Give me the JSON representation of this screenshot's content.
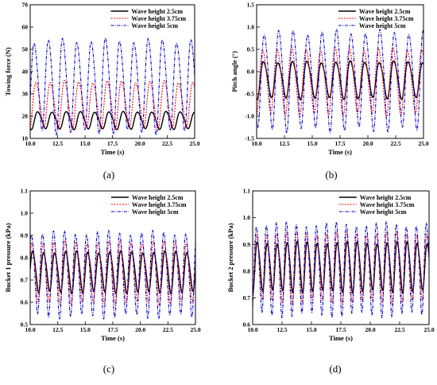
{
  "colors": {
    "s1": "#000000",
    "s2": "#ff0000",
    "s3": "#0000cc"
  },
  "chart_data": [
    {
      "type": "line",
      "panel": "(a)",
      "xlabel": "Time (s)",
      "ylabel": "Towing force (N)",
      "xlim": [
        10.0,
        25.0
      ],
      "ylim": [
        10,
        70
      ],
      "xticks": [
        "10.0",
        "12.5",
        "15.0",
        "17.5",
        "20.0",
        "22.5",
        "25.0"
      ],
      "yticks": [
        "10",
        "20",
        "30",
        "40",
        "50",
        "60",
        "70"
      ],
      "legend": "top-right",
      "series": [
        {
          "name": "Wave height 2.5cm",
          "period": 1.3,
          "peak": 22.5,
          "trough": 14.0
        },
        {
          "name": "Wave height 3.75cm",
          "period": 1.3,
          "peak": 37.0,
          "trough": 14.0
        },
        {
          "name": "Wave height 5cm",
          "period": 1.3,
          "peak": 57.0,
          "trough": 12.0
        }
      ]
    },
    {
      "type": "line",
      "panel": "(b)",
      "xlabel": "Time (s)",
      "ylabel": "Pitch angle (°)",
      "xlim": [
        10.0,
        25.0
      ],
      "ylim": [
        -1.5,
        1.5
      ],
      "xticks": [
        "10.0",
        "12.5",
        "15.0",
        "17.5",
        "20.0",
        "22.5",
        "25.0"
      ],
      "yticks": [
        "-1.5",
        "-1.0",
        "-0.5",
        "0.0",
        "0.5",
        "1.0",
        "1.5"
      ],
      "legend": "top-right",
      "series": [
        {
          "name": "Wave height 2.5cm",
          "period": 1.3,
          "peak": 0.28,
          "trough": -0.62
        },
        {
          "name": "Wave height 3.75cm",
          "period": 1.3,
          "peak": 0.62,
          "trough": -1.0
        },
        {
          "name": "Wave height 5cm",
          "period": 1.3,
          "peak": 1.05,
          "trough": -1.35
        }
      ]
    },
    {
      "type": "line",
      "panel": "(c)",
      "xlabel": "Time (s)",
      "ylabel": "Bucket 1 pressure (kPa)",
      "xlim": [
        10.0,
        25.0
      ],
      "ylim": [
        0.5,
        1.1
      ],
      "xticks": [
        "10.0",
        "12.5",
        "15.0",
        "17.5",
        "20.0",
        "22.5",
        "25.0"
      ],
      "yticks": [
        "0.5",
        "0.6",
        "0.7",
        "0.8",
        "0.9",
        "1.0",
        "1.1"
      ],
      "legend": "top-right",
      "series": [
        {
          "name": "Wave height 2.5cm",
          "period": 1.0,
          "peak": 0.84,
          "trough": 0.64
        },
        {
          "name": "Wave height 3.75cm",
          "period": 1.0,
          "peak": 0.89,
          "trough": 0.59
        },
        {
          "name": "Wave height 5cm",
          "period": 1.0,
          "peak": 0.94,
          "trough": 0.53
        }
      ]
    },
    {
      "type": "line",
      "panel": "(d)",
      "xlabel": "Time (s)",
      "ylabel": "Bucket 2 pressure (kPa)",
      "xlim": [
        10.0,
        25.0
      ],
      "ylim": [
        0.6,
        1.1
      ],
      "xticks": [
        "10.0",
        "12.5",
        "15.0",
        "17.5",
        "20.0",
        "22.5",
        "25.0"
      ],
      "yticks": [
        "0.6",
        "0.7",
        "0.8",
        "0.9",
        "1.0",
        "1.1"
      ],
      "legend": "top-right",
      "series": [
        {
          "name": "Wave height 2.5cm",
          "period": 0.85,
          "peak": 0.92,
          "trough": 0.72
        },
        {
          "name": "Wave height 3.75cm",
          "period": 0.85,
          "peak": 0.96,
          "trough": 0.68
        },
        {
          "name": "Wave height 5cm",
          "period": 0.85,
          "peak": 1.0,
          "trough": 0.63
        }
      ]
    }
  ]
}
